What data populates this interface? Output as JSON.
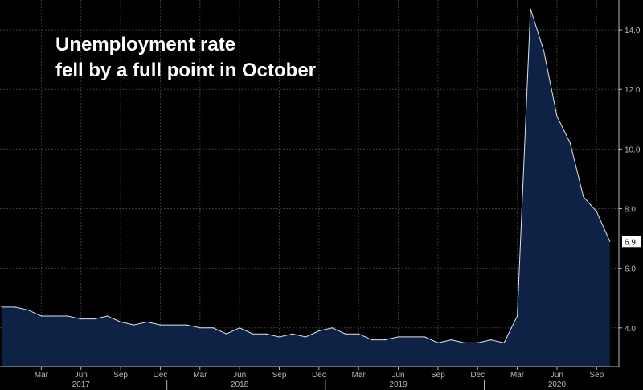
{
  "headline": {
    "line1": "Unemployment rate",
    "line2": "fell by a full point in October"
  },
  "chart_data": {
    "type": "area",
    "title": "",
    "xlabel": "",
    "ylabel": "",
    "x_start": "2017-01",
    "x": [
      "2016-12",
      "2017-01",
      "2017-02",
      "2017-03",
      "2017-04",
      "2017-05",
      "2017-06",
      "2017-07",
      "2017-08",
      "2017-09",
      "2017-10",
      "2017-11",
      "2017-12",
      "2018-01",
      "2018-02",
      "2018-03",
      "2018-04",
      "2018-05",
      "2018-06",
      "2018-07",
      "2018-08",
      "2018-09",
      "2018-10",
      "2018-11",
      "2018-12",
      "2019-01",
      "2019-02",
      "2019-03",
      "2019-04",
      "2019-05",
      "2019-06",
      "2019-07",
      "2019-08",
      "2019-09",
      "2019-10",
      "2019-11",
      "2019-12",
      "2020-01",
      "2020-02",
      "2020-03",
      "2020-04",
      "2020-05",
      "2020-06",
      "2020-07",
      "2020-08",
      "2020-09",
      "2020-10"
    ],
    "values": [
      4.7,
      4.7,
      4.6,
      4.4,
      4.4,
      4.4,
      4.3,
      4.3,
      4.4,
      4.2,
      4.1,
      4.2,
      4.1,
      4.1,
      4.1,
      4.0,
      4.0,
      3.8,
      4.0,
      3.8,
      3.8,
      3.7,
      3.8,
      3.7,
      3.9,
      4.0,
      3.8,
      3.8,
      3.6,
      3.6,
      3.7,
      3.7,
      3.7,
      3.5,
      3.6,
      3.5,
      3.5,
      3.6,
      3.5,
      4.4,
      14.7,
      13.3,
      11.1,
      10.2,
      8.4,
      7.9,
      6.9
    ],
    "ylim": [
      2.7,
      15.0
    ],
    "y_ticks": [
      "4.0",
      "6.0",
      "8.0",
      "10.0",
      "12.0",
      "14.0"
    ],
    "month_ticks": [
      {
        "label": "Mar",
        "x": "2017-03"
      },
      {
        "label": "Jun",
        "x": "2017-06"
      },
      {
        "label": "Sep",
        "x": "2017-09"
      },
      {
        "label": "Dec",
        "x": "2017-12"
      },
      {
        "label": "Mar",
        "x": "2018-03"
      },
      {
        "label": "Jun",
        "x": "2018-06"
      },
      {
        "label": "Sep",
        "x": "2018-09"
      },
      {
        "label": "Dec",
        "x": "2018-12"
      },
      {
        "label": "Mar",
        "x": "2019-03"
      },
      {
        "label": "Jun",
        "x": "2019-06"
      },
      {
        "label": "Sep",
        "x": "2019-09"
      },
      {
        "label": "Dec",
        "x": "2019-12"
      },
      {
        "label": "Mar",
        "x": "2020-03"
      },
      {
        "label": "Jun",
        "x": "2020-06"
      },
      {
        "label": "Sep",
        "x": "2020-09"
      }
    ],
    "year_labels": [
      {
        "label": "2017",
        "x": "2017-06"
      },
      {
        "label": "2018",
        "x": "2018-06"
      },
      {
        "label": "2019",
        "x": "2019-06"
      },
      {
        "label": "2020",
        "x": "2020-06"
      }
    ],
    "last_value_label": "6.9",
    "grid": true,
    "colors": {
      "background": "#000000",
      "area_fill": "#0d2244",
      "line": "#dfe4ea",
      "grid": "#3a3a3a",
      "tick_text": "#b8b8b8",
      "label_box": "#ffffff",
      "label_text": "#000000"
    }
  }
}
